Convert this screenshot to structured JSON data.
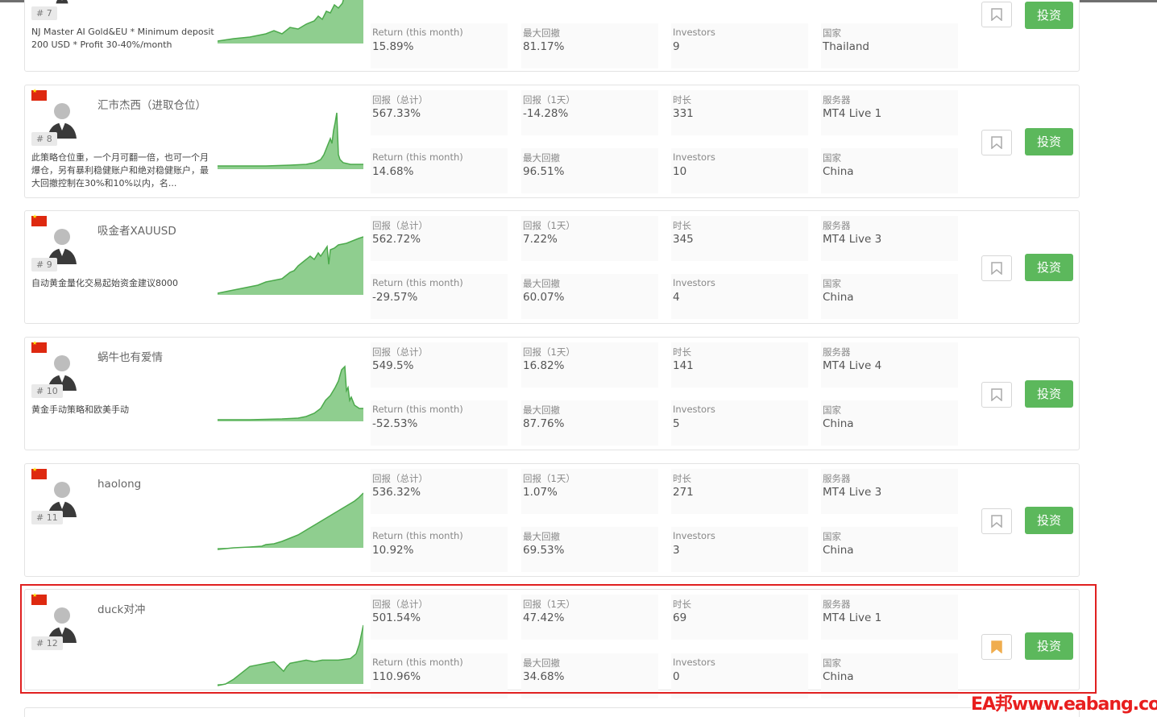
{
  "labels": {
    "return_total": "回报（总计）",
    "return_1d": "回报（1天）",
    "duration": "时长",
    "server": "服务器",
    "return_month": "Return (this month)",
    "max_drawdown": "最大回撤",
    "investors": "Investors",
    "country": "国家",
    "invest_button": "投资"
  },
  "watermark": "EA邦www.eabang.com",
  "colors": {
    "invest_button": "#5cb85c",
    "chart_fill": "#8fce8f",
    "chart_line": "#4caa4c",
    "highlight": "#e02020",
    "bookmark_active": "#f0ad4e"
  },
  "traders": [
    {
      "rank": "# 7",
      "name": "",
      "desc": "NJ Master AI Gold&EU * Minimum deposit 200 USD * Profit 30-40%/month",
      "return_month": "15.89%",
      "max_drawdown": "81.17%",
      "investors": "9",
      "country": "Thailand",
      "bookmarked": false
    },
    {
      "rank": "# 8",
      "name": "汇市杰西（进取仓位）",
      "desc": "此策略仓位重，一个月可翻一倍，也可一个月爆仓，另有暴利稳健账户和绝对稳健账户，最大回撤控制在30%和10%以内，名...",
      "return_total": "567.33%",
      "return_1d": "-14.28%",
      "duration": "331",
      "server": "MT4 Live 1",
      "return_month": "14.68%",
      "max_drawdown": "96.51%",
      "investors": "10",
      "country": "China",
      "bookmarked": false
    },
    {
      "rank": "# 9",
      "name": "吸金者XAUUSD",
      "desc": "自动黄金量化交易起始资金建议8000",
      "return_total": "562.72%",
      "return_1d": "7.22%",
      "duration": "345",
      "server": "MT4 Live 3",
      "return_month": "-29.57%",
      "max_drawdown": "60.07%",
      "investors": "4",
      "country": "China",
      "bookmarked": false
    },
    {
      "rank": "# 10",
      "name": "蜗牛也有爱情",
      "desc": "黄金手动策略和欧美手动",
      "return_total": "549.5%",
      "return_1d": "16.82%",
      "duration": "141",
      "server": "MT4 Live 4",
      "return_month": "-52.53%",
      "max_drawdown": "87.76%",
      "investors": "5",
      "country": "China",
      "bookmarked": false
    },
    {
      "rank": "# 11",
      "name": "haolong",
      "desc": "",
      "return_total": "536.32%",
      "return_1d": "1.07%",
      "duration": "271",
      "server": "MT4 Live 3",
      "return_month": "10.92%",
      "max_drawdown": "69.53%",
      "investors": "3",
      "country": "China",
      "bookmarked": false
    },
    {
      "rank": "# 12",
      "name": "duck对冲",
      "desc": "",
      "return_total": "501.54%",
      "return_1d": "47.42%",
      "duration": "69",
      "server": "MT4 Live 1",
      "return_month": "110.96%",
      "max_drawdown": "34.68%",
      "investors": "0",
      "country": "China",
      "bookmarked": true
    }
  ]
}
